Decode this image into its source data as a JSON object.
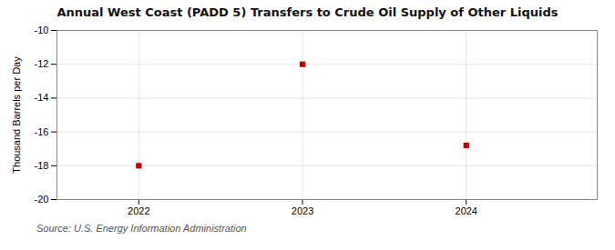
{
  "chart_data": {
    "type": "scatter",
    "title": "Annual West Coast (PADD 5) Transfers to Crude Oil Supply of Other Liquids",
    "ylabel": "Thousand Barrels per Day",
    "source": "Source: U.S. Energy Information Administration",
    "x": [
      2022,
      2023,
      2024
    ],
    "values": [
      -18,
      -12,
      -16.8
    ],
    "color": "#c00000",
    "marker": "square",
    "xlim": [
      2021.5,
      2024.8
    ],
    "xticks": [
      2022,
      2023,
      2024
    ],
    "ylim": [
      -20,
      -10
    ],
    "yticks": [
      -20,
      -18,
      -16,
      -14,
      -12,
      -10
    ],
    "grid": true
  }
}
